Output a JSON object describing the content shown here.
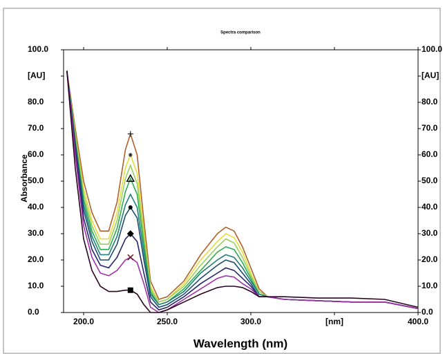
{
  "chart_data": {
    "type": "line",
    "title": "Spectra comparison",
    "x_label": "Wavelength (nm)",
    "y_label": "Absorbance",
    "x": [
      190,
      195,
      200,
      205,
      210,
      215,
      220,
      225,
      228,
      232,
      236,
      240,
      245,
      250,
      260,
      270,
      280,
      285,
      290,
      295,
      300,
      305,
      310,
      320,
      340,
      360,
      380,
      400
    ],
    "xlim": [
      188,
      400
    ],
    "xticks": [
      {
        "value": 200,
        "label": "200.0"
      },
      {
        "value": 250,
        "label": "250.0"
      },
      {
        "value": 300,
        "label": "300.0"
      },
      {
        "value": 350,
        "label": "[nm]"
      },
      {
        "value": 400,
        "label": "400.0"
      }
    ],
    "ylim": [
      0,
      100
    ],
    "yticks": [
      {
        "value": 0,
        "label": "0.0"
      },
      {
        "value": 10,
        "label": "10.0"
      },
      {
        "value": 20,
        "label": "20.0"
      },
      {
        "value": 30,
        "label": "30.0"
      },
      {
        "value": 40,
        "label": "40.0"
      },
      {
        "value": 50,
        "label": "50.0"
      },
      {
        "value": 60,
        "label": "60.0"
      },
      {
        "value": 70,
        "label": "70.0"
      },
      {
        "value": 80,
        "label": "80.0"
      },
      {
        "value": 90,
        "label": "[AU]"
      },
      {
        "value": 100,
        "label": "100.0"
      }
    ],
    "y2lim": [
      0,
      100
    ],
    "y2ticks": [
      {
        "value": 0,
        "label": "0.0"
      },
      {
        "value": 10,
        "label": "10.0"
      },
      {
        "value": 20,
        "label": "20.0"
      },
      {
        "value": 30,
        "label": "30.0"
      },
      {
        "value": 40,
        "label": "40.0"
      },
      {
        "value": 50,
        "label": "50.0"
      },
      {
        "value": 60,
        "label": "60.0"
      },
      {
        "value": 70,
        "label": "70.0"
      },
      {
        "value": 80,
        "label": "80.0"
      },
      {
        "value": 90,
        "label": "[AU]"
      },
      {
        "value": 100,
        "label": "100.0"
      }
    ],
    "series": [
      {
        "color": "#b0602a",
        "marker": "plus",
        "values": [
          92,
          70,
          50,
          38,
          31,
          31,
          42,
          62,
          68,
          60,
          35,
          12,
          5,
          6,
          12,
          22,
          30,
          32.5,
          31,
          25,
          17,
          9,
          6,
          5,
          4.5,
          4,
          4,
          1.5
        ]
      },
      {
        "color": "#e6dc3c",
        "marker": "star",
        "values": [
          92,
          68,
          47,
          35,
          28,
          28,
          38,
          55,
          60,
          53,
          31,
          10,
          4,
          5,
          11,
          20,
          27,
          30,
          28.5,
          23,
          15,
          8,
          6,
          5,
          4.5,
          4,
          4,
          1.5
        ]
      },
      {
        "color": "#98d060",
        "values": [
          92,
          67,
          45,
          33,
          26,
          26,
          35,
          51,
          56,
          49,
          29,
          9,
          4,
          5,
          10,
          18,
          25,
          28,
          26.5,
          21,
          14,
          8,
          6,
          5,
          4.5,
          4,
          4,
          1.5
        ]
      },
      {
        "color": "#2eaa4c",
        "marker": "triangle",
        "values": [
          92,
          66,
          43,
          31,
          24,
          24,
          32,
          46,
          51,
          45,
          26,
          8,
          3,
          4,
          9,
          16,
          23,
          25,
          24,
          19,
          13,
          7,
          6,
          5,
          4.5,
          4,
          4,
          1.5
        ]
      },
      {
        "color": "#1f8078",
        "values": [
          92,
          65,
          41,
          29,
          22,
          22,
          29,
          41,
          45,
          40,
          23,
          7,
          3,
          4,
          8,
          15,
          20,
          22,
          21,
          17,
          12,
          7,
          6,
          5,
          4.5,
          4,
          4,
          1.5
        ]
      },
      {
        "color": "#1c4a70",
        "marker": "circle",
        "values": [
          92,
          64,
          39,
          27,
          20,
          20,
          26,
          37,
          40,
          36,
          20,
          6,
          2,
          3,
          7,
          13,
          18,
          20,
          19,
          15,
          11,
          6,
          6,
          5,
          4.5,
          4,
          4,
          1.5
        ]
      },
      {
        "color": "#24246a",
        "marker": "diamond",
        "values": [
          92,
          62,
          36,
          24,
          18,
          17,
          21,
          28,
          30,
          27,
          15,
          4,
          1,
          2,
          6,
          11,
          15,
          17,
          16,
          13,
          10,
          6,
          6,
          5,
          4.5,
          4,
          4,
          1.5
        ]
      },
      {
        "color": "#a030a8",
        "marker": "cross",
        "values": [
          92,
          60,
          33,
          21,
          15,
          14,
          16,
          20,
          21,
          19,
          11,
          2,
          0,
          1,
          5,
          9,
          13,
          14,
          13.5,
          11,
          9,
          6,
          6,
          5,
          4.5,
          4,
          4,
          1.5
        ]
      },
      {
        "color": "#2a0420",
        "marker": "square",
        "values": [
          92,
          55,
          28,
          16,
          10,
          8,
          8,
          8.5,
          8.5,
          7,
          3,
          0,
          0,
          1,
          4,
          7,
          9.5,
          10,
          10,
          9.5,
          8,
          6,
          6,
          6,
          5.5,
          5.5,
          5,
          2
        ]
      }
    ]
  }
}
